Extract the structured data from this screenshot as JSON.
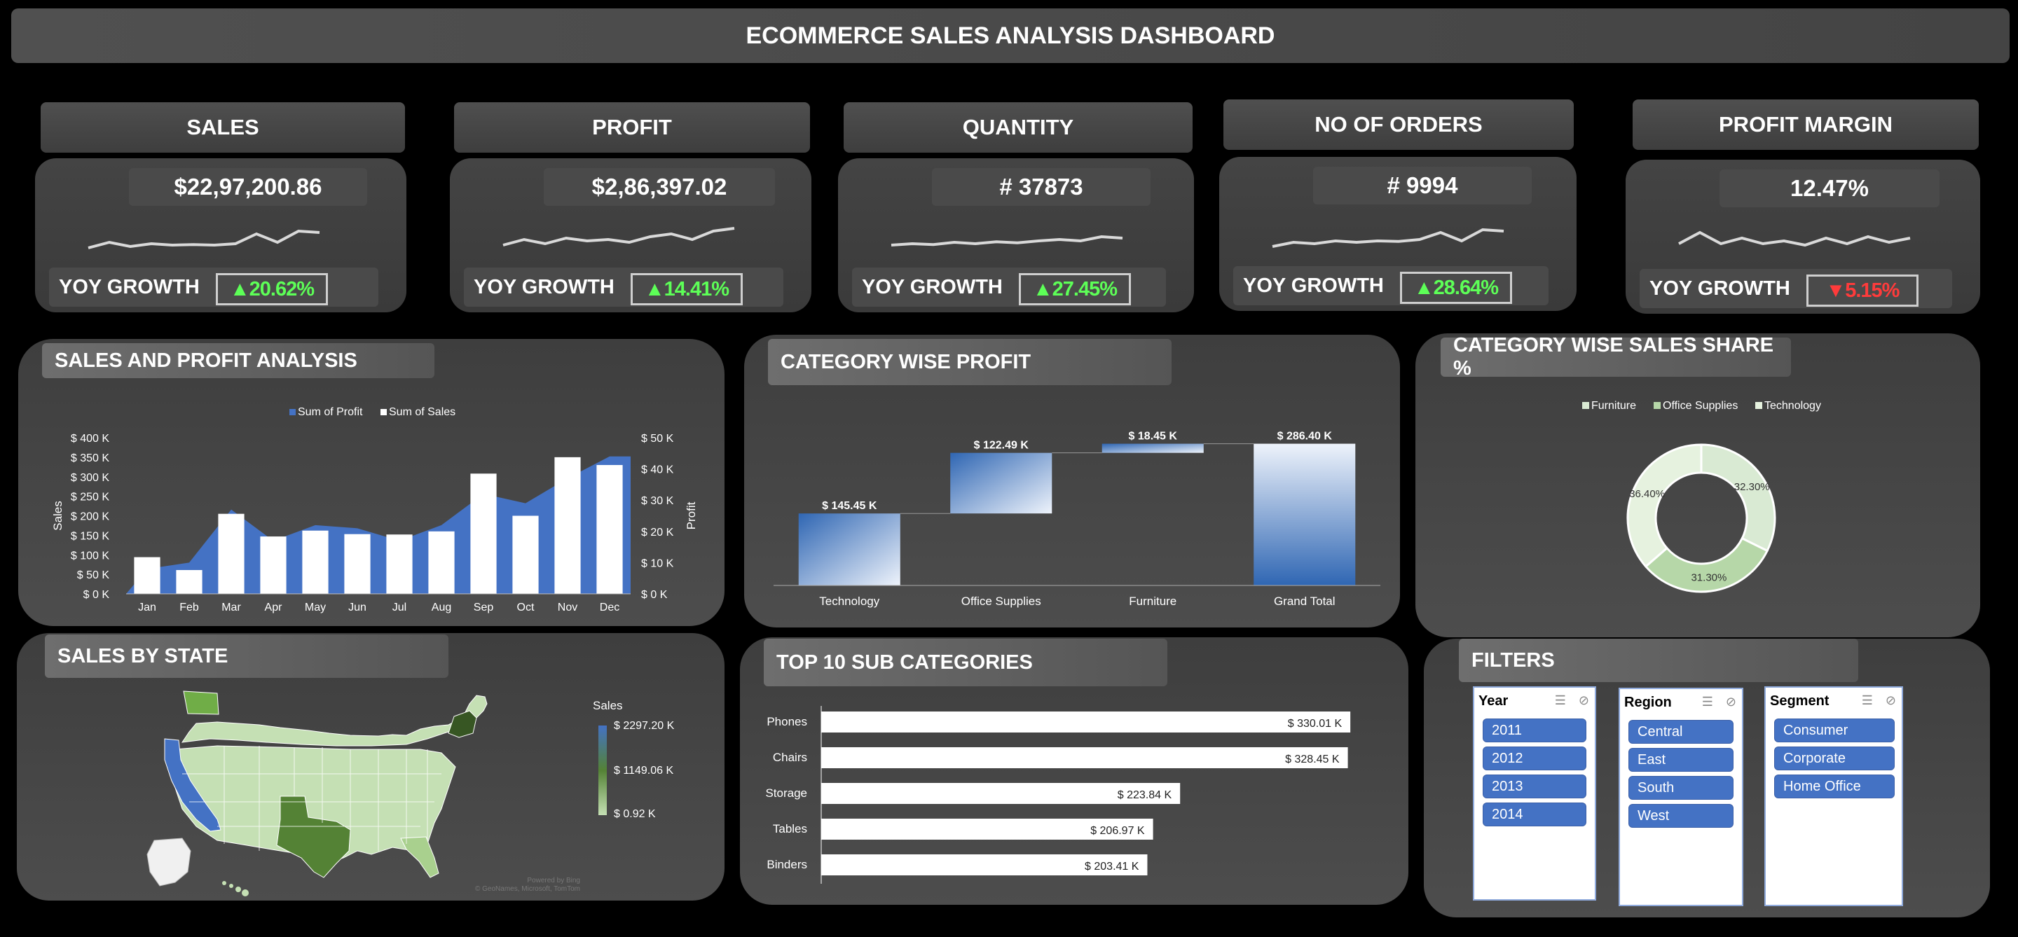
{
  "header": {
    "title": "ECOMMERCE SALES ANALYSIS DASHBOARD"
  },
  "kpis": [
    {
      "label": "SALES",
      "value": "$22,97,200.86",
      "yoy_label": "YOY GROWTH",
      "growth": "▲20.62%",
      "growth_color": "#5dff57",
      "trend": [
        0.3,
        0.5,
        0.35,
        0.45,
        0.4,
        0.42,
        0.4,
        0.45,
        0.8,
        0.5,
        0.9,
        0.85
      ]
    },
    {
      "label": "PROFIT",
      "value": "$2,86,397.02",
      "yoy_label": "YOY GROWTH",
      "growth": "▲14.41%",
      "growth_color": "#5dff57",
      "trend": [
        0.4,
        0.6,
        0.45,
        0.65,
        0.55,
        0.6,
        0.5,
        0.7,
        0.8,
        0.6,
        0.9,
        1.0
      ]
    },
    {
      "label": "QUANTITY",
      "value": "# 37873",
      "yoy_label": "YOY GROWTH",
      "growth": "▲27.45%",
      "growth_color": "#5dff57",
      "trend": [
        0.4,
        0.45,
        0.42,
        0.5,
        0.45,
        0.52,
        0.48,
        0.55,
        0.6,
        0.55,
        0.7,
        0.65
      ]
    },
    {
      "label": "NO OF ORDERS",
      "value": "# 9994",
      "yoy_label": "YOY GROWTH",
      "growth": "▲28.64%",
      "growth_color": "#5dff57",
      "trend": [
        0.3,
        0.45,
        0.4,
        0.5,
        0.45,
        0.5,
        0.48,
        0.55,
        0.8,
        0.5,
        0.9,
        0.85
      ]
    },
    {
      "label": "PROFIT MARGIN",
      "value": "12.47%",
      "yoy_label": "YOY GROWTH",
      "growth": "▼5.15%",
      "growth_color": "#ff3b3b",
      "trend": [
        0.5,
        0.9,
        0.5,
        0.7,
        0.5,
        0.6,
        0.45,
        0.7,
        0.5,
        0.75,
        0.55,
        0.7
      ]
    }
  ],
  "sections": {
    "sales_profit": "SALES AND PROFIT ANALYSIS",
    "category_profit": "CATEGORY WISE PROFIT",
    "category_share": "CATEGORY WISE SALES SHARE %",
    "sales_by_state": "SALES BY STATE",
    "top10": "TOP 10 SUB CATEGORIES",
    "filters": "FILTERS"
  },
  "chart_data": [
    {
      "type": "bar",
      "title": "SALES AND PROFIT ANALYSIS",
      "categories": [
        "Jan",
        "Feb",
        "Mar",
        "Apr",
        "May",
        "Jun",
        "Jul",
        "Aug",
        "Sep",
        "Oct",
        "Nov",
        "Dec"
      ],
      "ylabel": "Sales",
      "y2label": "Profit",
      "ylim": [
        0,
        400
      ],
      "y2lim": [
        0,
        50
      ],
      "yticks": [
        "$ 0 K",
        "$ 50 K",
        "$ 100 K",
        "$ 150 K",
        "$ 200 K",
        "$ 250 K",
        "$ 300 K",
        "$ 350 K",
        "$ 400 K"
      ],
      "y2ticks": [
        "$ 0 K",
        "$ 10 K",
        "$ 20 K",
        "$ 30 K",
        "$ 40 K",
        "$ 50 K"
      ],
      "legend": [
        "Sum of Profit",
        "Sum of Sales"
      ],
      "series": [
        {
          "name": "Sum of Sales",
          "type": "bar",
          "values": [
            94,
            61,
            205,
            147,
            162,
            153,
            152,
            160,
            308,
            200,
            350,
            330
          ],
          "color": "#ffffff"
        },
        {
          "name": "Sum of Profit",
          "type": "area",
          "values": [
            8,
            10,
            27,
            17,
            22,
            21,
            17,
            22,
            32,
            29,
            37,
            44
          ],
          "color": "#4472c4"
        }
      ]
    },
    {
      "type": "bar",
      "subtype": "waterfall",
      "title": "CATEGORY WISE PROFIT",
      "categories": [
        "Technology",
        "Office Supplies",
        "Furniture",
        "Grand Total"
      ],
      "values": [
        145.45,
        122.49,
        18.45,
        286.4
      ],
      "labels": [
        "$ 145.45 K",
        "$ 122.49 K",
        "$ 18.45 K",
        "$ 286.40 K"
      ],
      "ylim": [
        0,
        300
      ]
    },
    {
      "type": "pie",
      "subtype": "donut",
      "title": "CATEGORY WISE SALES SHARE %",
      "legend": [
        "Furniture",
        "Office Supplies",
        "Technology"
      ],
      "values": [
        32.3,
        31.3,
        36.4
      ],
      "labels": [
        "32.30%",
        "31.30%",
        "36.40%"
      ],
      "colors": [
        "#d9ead3",
        "#b6d7a8",
        "#e6f2df"
      ]
    },
    {
      "type": "bar",
      "subtype": "horizontal",
      "title": "TOP 10 SUB CATEGORIES",
      "categories": [
        "Phones",
        "Chairs",
        "Storage",
        "Tables",
        "Binders"
      ],
      "values": [
        330.01,
        328.45,
        223.84,
        206.97,
        203.41
      ],
      "labels": [
        "$ 330.01 K",
        "$ 328.45 K",
        "$ 223.84 K",
        "$ 206.97 K",
        "$ 203.41 K"
      ],
      "xlim": [
        0,
        340
      ]
    }
  ],
  "map": {
    "legend_title": "Sales",
    "legend_values": [
      "$ 2297.20 K",
      "$ 1149.06 K",
      "$ 0.92 K"
    ],
    "colors": {
      "high": "#4472c4",
      "mid": "#548235",
      "low": "#c5e0b4"
    },
    "credit_line1": "Powered by Bing",
    "credit_line2": "© GeoNames, Microsoft, TomTom"
  },
  "filters": {
    "year": {
      "title": "Year",
      "items": [
        "2011",
        "2012",
        "2013",
        "2014"
      ]
    },
    "region": {
      "title": "Region",
      "items": [
        "Central",
        "East",
        "South",
        "West"
      ]
    },
    "segment": {
      "title": "Segment",
      "items": [
        "Consumer",
        "Corporate",
        "Home Office"
      ]
    }
  }
}
